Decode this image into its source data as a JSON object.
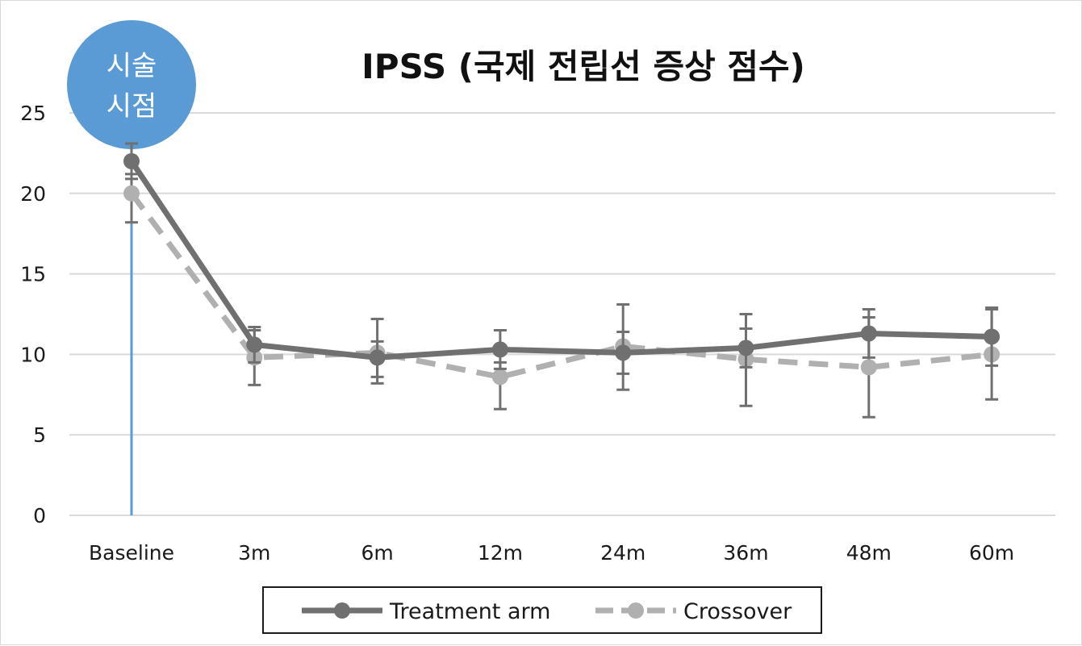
{
  "chart_data": {
    "type": "line",
    "title": "IPSS (국제 전립선 증상 점수)",
    "xlabel": "",
    "ylabel": "",
    "categories": [
      "Baseline",
      "3m",
      "6m",
      "12m",
      "24m",
      "36m",
      "48m",
      "60m"
    ],
    "ylim": [
      0,
      25
    ],
    "yticks": [
      0,
      5,
      10,
      15,
      20,
      25
    ],
    "grid": true,
    "legend_position": "bottom",
    "series": [
      {
        "name": "Treatment arm",
        "style": "solid",
        "color": "#707070",
        "values": [
          22.0,
          10.6,
          9.8,
          10.3,
          10.1,
          10.4,
          11.3,
          11.1
        ],
        "error_low": [
          20.9,
          9.5,
          8.6,
          9.1,
          8.8,
          9.2,
          9.8,
          9.3
        ],
        "error_high": [
          23.1,
          11.7,
          10.8,
          11.5,
          11.4,
          11.6,
          12.8,
          12.9
        ]
      },
      {
        "name": "Crossover",
        "style": "dashed",
        "color": "#b0b0b0",
        "values": [
          20.0,
          9.8,
          10.1,
          8.6,
          10.5,
          9.7,
          9.2,
          10.0
        ],
        "error_low": [
          18.2,
          8.1,
          8.2,
          6.6,
          7.8,
          6.8,
          6.1,
          7.2
        ],
        "error_high": [
          21.2,
          11.5,
          12.2,
          9.5,
          13.1,
          12.5,
          12.3,
          12.8
        ]
      }
    ],
    "annotation": {
      "label_line1": "시술",
      "label_line2": "시점",
      "at_category": "Baseline",
      "color": "#5b9bd5"
    }
  }
}
